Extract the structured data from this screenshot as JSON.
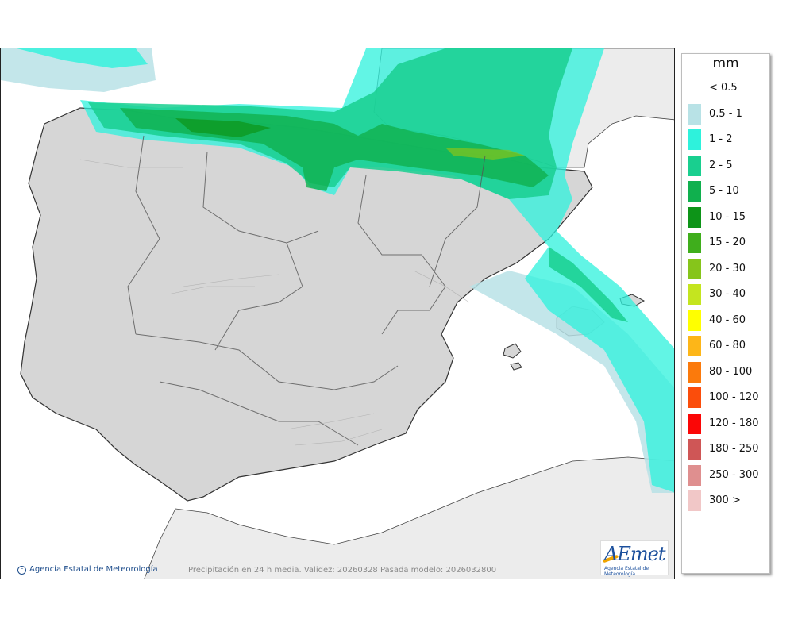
{
  "legend": {
    "unit": "mm",
    "items": [
      {
        "label": "< 0.5",
        "color": "#ffffff"
      },
      {
        "label": "0.5 - 1",
        "color": "#b8e2e6"
      },
      {
        "label": "1 - 2",
        "color": "#2ef2dc"
      },
      {
        "label": "2 - 5",
        "color": "#19cf8f"
      },
      {
        "label": "5 - 10",
        "color": "#10b04e"
      },
      {
        "label": "10 - 15",
        "color": "#0d9418"
      },
      {
        "label": "15 - 20",
        "color": "#3fae1c"
      },
      {
        "label": "20 - 30",
        "color": "#86c51b"
      },
      {
        "label": "30 - 40",
        "color": "#c4e51f"
      },
      {
        "label": "40 - 60",
        "color": "#ffff00"
      },
      {
        "label": "60 - 80",
        "color": "#fdb618"
      },
      {
        "label": "80 - 100",
        "color": "#fb7a0c"
      },
      {
        "label": "100 - 120",
        "color": "#fb4d0b"
      },
      {
        "label": "120 - 180",
        "color": "#fb0606"
      },
      {
        "label": "180 - 250",
        "color": "#cf5656"
      },
      {
        "label": "250 - 300",
        "color": "#df8f8f"
      },
      {
        "label": "300 >",
        "color": "#f1c7c7"
      }
    ]
  },
  "footer": {
    "copyright": "Agencia Estatal de Meteorología",
    "caption": "Precipitación en 24 h media. Validez: 20260328 Pasada modelo: 2026032800"
  },
  "logo": {
    "word": "AEmet",
    "sub": "Agencia Estatal de Meteorología"
  },
  "colors": {
    "land": "#d6d6d6",
    "sea": "#ffffff",
    "foreign_land": "#ececec",
    "border": "#333333"
  }
}
